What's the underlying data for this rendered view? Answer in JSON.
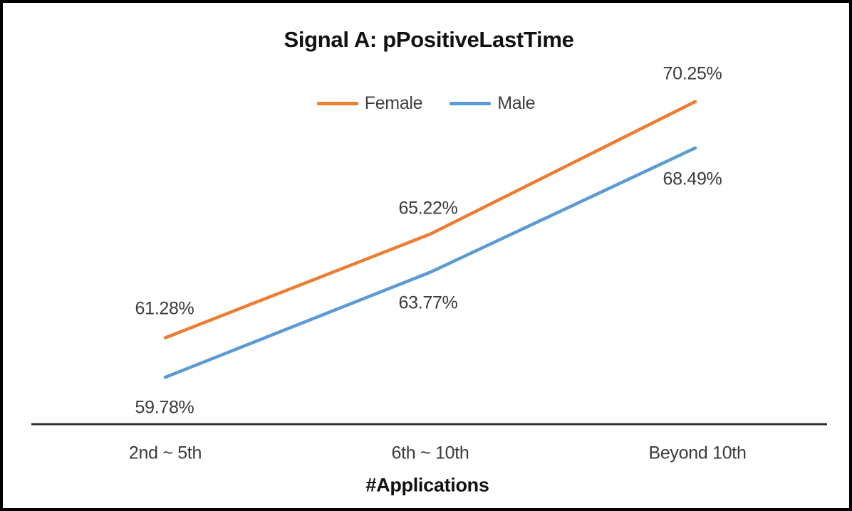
{
  "chart_data": {
    "type": "line",
    "title": "Signal A: pPositiveLastTime",
    "xlabel": "#Applications",
    "ylabel": "",
    "categories": [
      "2nd ~ 5th",
      "6th ~ 10th",
      "Beyond 10th"
    ],
    "series": [
      {
        "name": "Female",
        "color": "#ED7D31",
        "values": [
          61.28,
          65.22,
          70.25
        ],
        "data_labels": [
          "61.28%",
          "65.22%",
          "70.25%"
        ]
      },
      {
        "name": "Male",
        "color": "#5B9BD5",
        "values": [
          59.78,
          63.77,
          68.49
        ],
        "data_labels": [
          "59.78%",
          "63.77%",
          "68.49%"
        ]
      }
    ],
    "legend_position": "top",
    "grid": false,
    "y_axis_visible": false,
    "approx_y_range": [
      58,
      73
    ]
  },
  "colors": {
    "female_line": "#ED7D31",
    "male_line": "#5B9BD5",
    "axis_line": "#2e2e2e",
    "label_text": "#3a3a3a",
    "title_text": "#111111",
    "frame_border": "#000000",
    "background": "#FFFFFF"
  }
}
